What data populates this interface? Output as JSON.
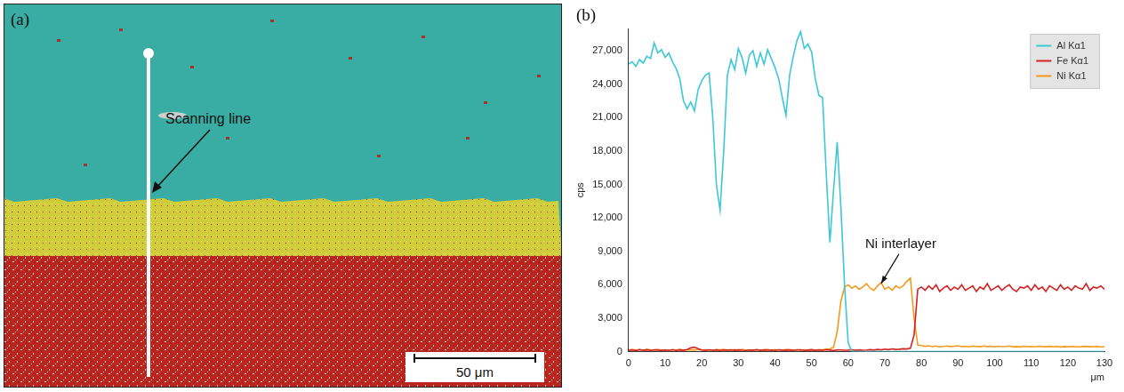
{
  "panel_a": {
    "label": "(a)",
    "annotation": "Scanning line",
    "scale_bar": "50 μm"
  },
  "chart_data": {
    "type": "line",
    "label": "(b)",
    "x_label": "μm",
    "y_label": "cps",
    "x": [
      0,
      1,
      2,
      3,
      4,
      5,
      6,
      7,
      8,
      9,
      10,
      11,
      12,
      13,
      14,
      15,
      16,
      17,
      18,
      19,
      20,
      21,
      22,
      23,
      24,
      25,
      26,
      27,
      28,
      29,
      30,
      31,
      32,
      33,
      34,
      35,
      36,
      37,
      38,
      39,
      40,
      41,
      42,
      43,
      44,
      45,
      46,
      47,
      48,
      49,
      50,
      51,
      52,
      53,
      54,
      55,
      56,
      57,
      58,
      59,
      60,
      61,
      62,
      63,
      64,
      65,
      66,
      67,
      68,
      69,
      70,
      71,
      72,
      73,
      74,
      75,
      76,
      77,
      78,
      79,
      80,
      81,
      82,
      83,
      84,
      85,
      86,
      87,
      88,
      89,
      90,
      91,
      92,
      93,
      94,
      95,
      96,
      97,
      98,
      99,
      100,
      101,
      102,
      103,
      104,
      105,
      106,
      107,
      108,
      109,
      110,
      111,
      112,
      113,
      114,
      115,
      116,
      117,
      118,
      119,
      120,
      121,
      122,
      123,
      124,
      125,
      126,
      127,
      128,
      129,
      130
    ],
    "series": [
      {
        "name": "Al Kα1",
        "color": "#3cc8d8",
        "values": [
          25800,
          26000,
          25600,
          26200,
          25900,
          26500,
          26300,
          27700,
          26800,
          27100,
          26400,
          26800,
          26000,
          25400,
          24500,
          22500,
          21800,
          22400,
          21600,
          23500,
          24300,
          24800,
          25000,
          21000,
          15000,
          12700,
          18000,
          24800,
          26200,
          25300,
          27200,
          26400,
          25000,
          26600,
          27000,
          25600,
          26800,
          25800,
          27100,
          26300,
          25500,
          24500,
          22800,
          21200,
          24800,
          26500,
          27900,
          28700,
          27200,
          27600,
          26900,
          24500,
          23000,
          22800,
          16000,
          9800,
          14500,
          18800,
          13000,
          6000,
          800,
          0,
          0,
          0,
          0,
          0,
          0,
          0,
          0,
          0,
          0,
          0,
          0,
          0,
          0,
          0,
          0,
          0,
          0,
          0,
          0,
          0,
          0,
          0,
          0,
          0,
          0,
          0,
          0,
          0,
          0,
          0,
          0,
          0,
          0,
          0,
          0,
          0,
          0,
          0,
          0,
          0,
          0,
          0,
          0,
          0,
          0,
          0,
          0,
          0,
          0,
          0,
          0,
          0,
          0,
          0,
          0,
          0,
          0,
          0,
          0,
          0,
          0,
          0,
          0,
          0,
          0,
          0,
          0,
          0,
          0
        ]
      },
      {
        "name": "Fe Kα1",
        "color": "#d42222",
        "values": [
          120,
          150,
          100,
          180,
          130,
          160,
          110,
          170,
          140,
          120,
          150,
          130,
          170,
          110,
          160,
          140,
          190,
          350,
          400,
          260,
          150,
          120,
          170,
          130,
          160,
          110,
          150,
          140,
          170,
          120,
          160,
          130,
          110,
          150,
          140,
          170,
          120,
          160,
          130,
          150,
          110,
          170,
          140,
          120,
          160,
          130,
          150,
          170,
          110,
          140,
          160,
          120,
          150,
          130,
          170,
          140,
          110,
          160,
          150,
          130,
          140,
          170,
          120,
          160,
          130,
          150,
          180,
          140,
          200,
          160,
          230,
          180,
          250,
          200,
          220,
          260,
          240,
          300,
          1500,
          5600,
          5800,
          5500,
          5900,
          5600,
          6000,
          5400,
          5700,
          5900,
          5500,
          5800,
          5600,
          6000,
          5500,
          5700,
          5900,
          5400,
          5800,
          5600,
          6100,
          5500,
          5700,
          5900,
          5500,
          5800,
          6000,
          5600,
          5400,
          5800,
          5700,
          5900,
          5500,
          6000,
          5600,
          5800,
          5400,
          5900,
          5700,
          5500,
          6000,
          5600,
          5800,
          5500,
          5900,
          5700,
          5600,
          6100,
          5500,
          5800,
          5700,
          5900,
          5600
        ]
      },
      {
        "name": "Ni Kα1",
        "color": "#f39a1e",
        "values": [
          150,
          200,
          120,
          180,
          100,
          220,
          160,
          140,
          200,
          130,
          170,
          110,
          190,
          150,
          210,
          120,
          160,
          180,
          140,
          200,
          130,
          170,
          150,
          110,
          190,
          160,
          200,
          140,
          120,
          180,
          150,
          210,
          130,
          170,
          100,
          190,
          140,
          160,
          200,
          120,
          180,
          150,
          130,
          210,
          160,
          110,
          190,
          140,
          170,
          150,
          200,
          130,
          180,
          160,
          220,
          250,
          400,
          1800,
          4500,
          5800,
          6000,
          5700,
          5900,
          5600,
          5800,
          6100,
          5700,
          5500,
          5900,
          6200,
          5600,
          5800,
          5500,
          5900,
          5700,
          5900,
          6300,
          6600,
          3000,
          600,
          550,
          480,
          520,
          450,
          500,
          430,
          470,
          510,
          460,
          490,
          520,
          450,
          480,
          430,
          500,
          470,
          440,
          510,
          460,
          480,
          430,
          490,
          450,
          470,
          500,
          440,
          460,
          420,
          480,
          450,
          470,
          430,
          490,
          460,
          440,
          480,
          450,
          470,
          420,
          460,
          440,
          470,
          450,
          430,
          460,
          480,
          440,
          450,
          470,
          430,
          450
        ]
      }
    ],
    "xlim": [
      0,
      130
    ],
    "xticks": [
      0,
      10,
      20,
      30,
      40,
      50,
      60,
      70,
      80,
      90,
      100,
      110,
      120,
      130
    ],
    "ylim": [
      0,
      29000
    ],
    "yticks": [
      0,
      {
        "value": 3000,
        "label": "3,000"
      },
      {
        "value": 6000,
        "label": "6,000"
      },
      {
        "value": 9000,
        "label": "9,000"
      },
      {
        "value": 12000,
        "label": "12,000"
      },
      {
        "value": 15000,
        "label": "15,000"
      },
      {
        "value": 18000,
        "label": "18,000"
      },
      {
        "value": 21000,
        "label": "21,000"
      },
      {
        "value": 24000,
        "label": "24,000"
      },
      {
        "value": 27000,
        "label": "27,000"
      }
    ],
    "annotations": [
      {
        "text": "Ni interlayer",
        "x": 69,
        "y": 5800
      }
    ],
    "grid": false,
    "legend": "upper right"
  }
}
